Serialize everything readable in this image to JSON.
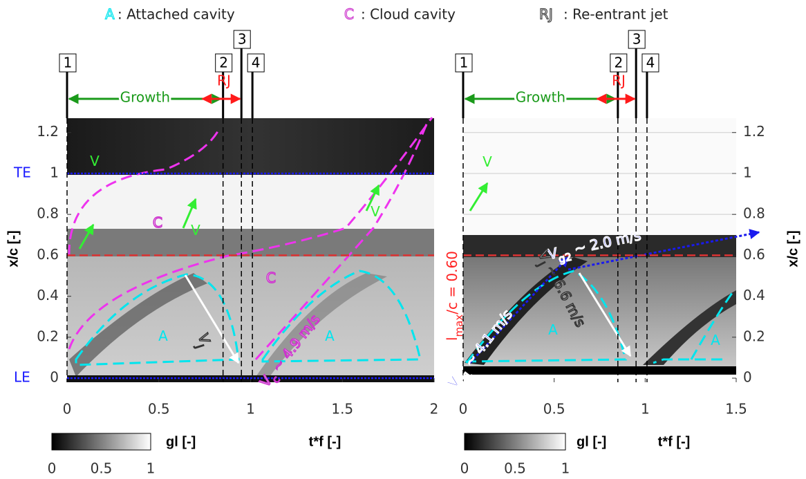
{
  "legend": [
    {
      "symbol": "A",
      "text": " : Attached cavity",
      "color": "#00e5ee"
    },
    {
      "symbol": "C",
      "text": ": Cloud cavity",
      "color": "#cc33cc"
    },
    {
      "symbol": "RJ",
      "text": " : Re-entrant jet",
      "color": "#444444"
    }
  ],
  "chart_data": [
    {
      "type": "image",
      "xlabel": "t*f [-]",
      "ylabel": "x/c [-]",
      "yaxis": "left",
      "grid": false,
      "xlim": [
        0,
        2
      ],
      "xticks": [
        0,
        0.5,
        1,
        1.5,
        2
      ],
      "ylim": [
        -0.02,
        1.27
      ],
      "yticks": [
        0,
        0.2,
        0.4,
        0.6,
        0.8,
        1,
        1.2
      ],
      "colorbar": {
        "label": "gl [-]",
        "ticks": [
          0,
          0.5,
          1
        ]
      },
      "stages": [
        {
          "label": "1",
          "x": 0
        },
        {
          "label": "2",
          "x": 0.85
        },
        {
          "label": "3",
          "x": 0.95
        },
        {
          "label": "4",
          "x": 1.01
        }
      ],
      "growth_label": "Growth",
      "rj_label": "RJ",
      "growth_color": "#1a9a1a",
      "rj_color": "#ff1a1a",
      "ref_lines": [
        {
          "label": "TE",
          "y": 1,
          "color": "#1a1aff"
        },
        {
          "label": "LE",
          "y": 0,
          "color": "#1a1aff"
        }
      ],
      "red_line": 0.6,
      "annotations": [
        {
          "text": "V",
          "color": "#33ee33"
        },
        {
          "text": "V",
          "color": "#33ee33"
        },
        {
          "text": "V",
          "color": "#33ee33"
        },
        {
          "text": "C",
          "color": "#ffffff",
          "outline": "#cc33cc"
        },
        {
          "text": "C",
          "color": "#ffffff",
          "outline": "#cc33cc"
        },
        {
          "text": "A",
          "color": "#00e5ee"
        },
        {
          "text": "A",
          "color": "#00e5ee"
        },
        {
          "text": "V",
          "sub": "j",
          "color": "#ffffff",
          "outline": "#333333"
        },
        {
          "text": "V",
          "sub": "c",
          "rest": " ~ 4.9 m/s",
          "color": "#ffffff",
          "outline": "#cc33cc"
        }
      ]
    },
    {
      "type": "image",
      "xlabel": "t*f [-]",
      "ylabel": "x/c [-]",
      "yaxis": "right",
      "grid": true,
      "xlim": [
        0,
        1.5
      ],
      "xticks": [
        0,
        0.5,
        1,
        1.5
      ],
      "ylim": [
        -0.02,
        1.27
      ],
      "yticks": [
        0,
        0.2,
        0.4,
        0.6,
        0.8,
        1,
        1.2
      ],
      "colorbar": {
        "label": "gl [-]",
        "ticks": [
          0,
          0.5,
          1
        ]
      },
      "stages": [
        {
          "label": "1",
          "x": 0
        },
        {
          "label": "2",
          "x": 0.85
        },
        {
          "label": "3",
          "x": 0.95
        },
        {
          "label": "4",
          "x": 1.01
        }
      ],
      "growth_label": "Growth",
      "rj_label": "RJ",
      "growth_color": "#1a9a1a",
      "rj_color": "#ff1a1a",
      "ref_lines": [],
      "red_line": 0.6,
      "annotations": [
        {
          "text": "V",
          "color": "#33ee33"
        },
        {
          "text": "A",
          "color": "#00e5ee"
        },
        {
          "text": "A",
          "color": "#00e5ee"
        },
        {
          "text": "l",
          "sub": "max",
          "rest": "/c = 0.60",
          "color": "#ff2222"
        },
        {
          "text": "V",
          "sub": "g1",
          "rest": " ~ 4.1 m/s",
          "color": "#1a1aee",
          "outline": "#ffffff"
        },
        {
          "text": "V",
          "sub": "g2",
          "rest": " ~ 2.0 m/s",
          "color": "#1a1aee",
          "outline": "#ffffff"
        },
        {
          "text": "V",
          "sub": "j",
          "rest": " ~ 6.6 m/s",
          "color": "#ffffff",
          "outline": "#333333"
        }
      ]
    }
  ]
}
